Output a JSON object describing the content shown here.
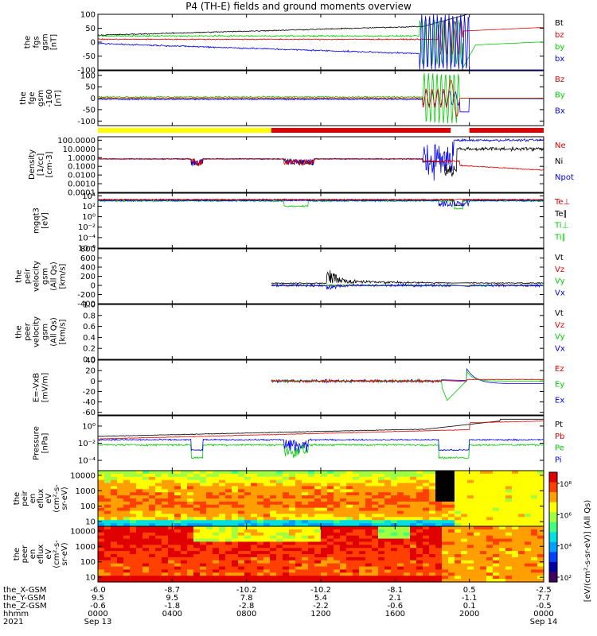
{
  "title": "P4 (TH-E) fields and ground moments overview",
  "colors": {
    "black": "#000000",
    "red": "#e00000",
    "green": "#00cc00",
    "blue": "#0000ee",
    "yellow": "#ffff00"
  },
  "panels": [
    {
      "id": "fgs",
      "ylabel": [
        "the",
        "fgs",
        "gsm",
        "[nT]"
      ],
      "ticks": [
        "100",
        "50",
        "0",
        "-50",
        "-100"
      ],
      "tickvals": [
        100,
        50,
        0,
        -50,
        -100
      ],
      "ylim": [
        -100,
        100
      ],
      "legend": [
        {
          "text": "Bt",
          "color": "#000000"
        },
        {
          "text": "bz",
          "color": "#e00000"
        },
        {
          "text": "by",
          "color": "#00cc00"
        },
        {
          "text": "bx",
          "color": "#0000ee"
        }
      ]
    },
    {
      "id": "fge",
      "ylabel": [
        "the",
        "fge",
        "gsm",
        "-160",
        "[nT]"
      ],
      "ticks": [
        "100",
        "50",
        "0",
        "-50",
        "-100"
      ],
      "tickvals": [
        100,
        50,
        0,
        -50,
        -100
      ],
      "ylim": [
        -120,
        120
      ],
      "legend": [
        {
          "text": "Bz",
          "color": "#e00000"
        },
        {
          "text": "By",
          "color": "#00cc00"
        },
        {
          "text": "Bx",
          "color": "#0000ee"
        }
      ]
    },
    {
      "id": "density",
      "ylabel": [
        "Density",
        "[1/cc]",
        "[cm-3]"
      ],
      "ticks": [
        "100.0000",
        "10.0000",
        "1.0000",
        "0.1000",
        "0.0100",
        "0.0010",
        "0.0001"
      ],
      "tickvals": [
        2,
        1,
        0,
        -1,
        -2,
        -3,
        -4
      ],
      "ylim": [
        -4,
        2.4
      ],
      "legend": [
        {
          "text": "Ne",
          "color": "#e00000"
        },
        {
          "text": "Ni",
          "color": "#000000"
        },
        {
          "text": "Npot",
          "color": "#0000ee"
        }
      ]
    },
    {
      "id": "temp",
      "ylabel": [
        "mgqt3",
        "[eV]"
      ],
      "ticks": [
        "10⁴",
        "10²",
        "10⁰",
        "10⁻²",
        "10⁻⁴",
        "10⁻⁶"
      ],
      "tickvals": [
        4,
        2,
        0,
        -2,
        -4,
        -6
      ],
      "ylim": [
        -6,
        4.5
      ],
      "legend": [
        {
          "text": "Te⊥",
          "color": "#e00000"
        },
        {
          "text": "Te∥",
          "color": "#000000"
        },
        {
          "text": "Ti⊥",
          "color": "#00cc00"
        },
        {
          "text": "Ti∥",
          "color": "#00cc00"
        }
      ]
    },
    {
      "id": "peir_vel",
      "ylabel": [
        "the",
        "peir",
        "velocity",
        "gsm",
        "(All Qs)",
        "[km/s]"
      ],
      "ticks": [
        "800",
        "600",
        "400",
        "200",
        "0",
        "-200",
        "-400"
      ],
      "tickvals": [
        800,
        600,
        400,
        200,
        0,
        -200,
        -400
      ],
      "ylim": [
        -400,
        800
      ],
      "legend": [
        {
          "text": "Vt",
          "color": "#000000"
        },
        {
          "text": "Vz",
          "color": "#e00000"
        },
        {
          "text": "Vy",
          "color": "#00cc00"
        },
        {
          "text": "Vx",
          "color": "#0000ee"
        }
      ]
    },
    {
      "id": "peer_vel",
      "ylabel": [
        "the",
        "peer",
        "velocity",
        "gsm",
        "(All Qs)",
        "[km/s]"
      ],
      "ticks": [
        "1.0",
        "0.8",
        "0.6",
        "0.4",
        "0.2",
        "0.0"
      ],
      "tickvals": [
        1,
        0.8,
        0.6,
        0.4,
        0.2,
        0
      ],
      "ylim": [
        0,
        1
      ],
      "legend": [
        {
          "text": "Vt",
          "color": "#000000"
        },
        {
          "text": "Vz",
          "color": "#e00000"
        },
        {
          "text": "Vy",
          "color": "#00cc00"
        },
        {
          "text": "Vx",
          "color": "#0000ee"
        }
      ]
    },
    {
      "id": "efield",
      "ylabel": [
        "E=-VxB",
        "[mV/m]"
      ],
      "ticks": [
        "40",
        "20",
        "0",
        "-20",
        "-40",
        "-60"
      ],
      "tickvals": [
        40,
        20,
        0,
        -20,
        -40,
        -60
      ],
      "ylim": [
        -65,
        40
      ],
      "legend": [
        {
          "text": "Ez",
          "color": "#e00000"
        },
        {
          "text": "Ey",
          "color": "#00cc00"
        },
        {
          "text": "Ex",
          "color": "#0000ee"
        }
      ]
    },
    {
      "id": "pressure",
      "ylabel": [
        "Pressure",
        "[nPa]"
      ],
      "ticks": [
        "10⁰",
        "10⁻²",
        "10⁻⁴"
      ],
      "tickvals": [
        0,
        -2,
        -4
      ],
      "ylim": [
        -5.2,
        1.2
      ],
      "legend": [
        {
          "text": "Pt",
          "color": "#000000"
        },
        {
          "text": "Pb",
          "color": "#e00000"
        },
        {
          "text": "Pe",
          "color": "#00cc00"
        },
        {
          "text": "Pi",
          "color": "#0000ee"
        }
      ]
    },
    {
      "id": "peir_eflux",
      "ylabel": [
        "the",
        "peir",
        "en",
        "eflux",
        "eV",
        "(cm²-s-",
        "sr-eV)"
      ],
      "ticks": [
        "10000",
        "1000",
        "100",
        "10"
      ],
      "tickvals": [
        4,
        3,
        2,
        1
      ],
      "ylim": [
        0.7,
        4.3
      ],
      "legend": []
    },
    {
      "id": "peer_eflux",
      "ylabel": [
        "the",
        "peer",
        "en",
        "eflux",
        "eV",
        "(cm²-s-",
        "sr-eV)"
      ],
      "ticks": [
        "10000",
        "1000",
        "100",
        "10"
      ],
      "tickvals": [
        4,
        3,
        2,
        1
      ],
      "ylim": [
        0.7,
        4.3
      ],
      "legend": []
    }
  ],
  "colorbar": {
    "ticks": [
      "10⁸",
      "10⁶",
      "10⁴",
      "10²"
    ],
    "label": "[eV/(cm²-s-sr-eV)] (All Qs)"
  },
  "xaxis": {
    "rows": [
      {
        "label": "the_X-GSM",
        "values": [
          "-6.0",
          "-8.7",
          "-10.2",
          "-10.2",
          "-8.1",
          "0.5",
          "-2.5"
        ]
      },
      {
        "label": "the_Y-GSM",
        "values": [
          "9.5",
          "9.5",
          "7.8",
          "5.4",
          "2.1",
          "-1.1",
          "7.7"
        ]
      },
      {
        "label": "the_Z-GSM",
        "values": [
          "-0.6",
          "-1.8",
          "-2.8",
          "-2.2",
          "-0.6",
          "0.1",
          "-0.5"
        ]
      },
      {
        "label": "hhmm",
        "values": [
          "0000",
          "0400",
          "0800",
          "1200",
          "1600",
          "2000",
          "0000"
        ]
      },
      {
        "label": "2021",
        "values": [
          "Sep 13",
          "",
          "",
          "",
          "",
          "",
          "Sep 14"
        ]
      }
    ]
  },
  "chart_data": {
    "type": "line",
    "title": "P4 (TH-E) fields and ground moments overview",
    "xlabel": "hhmm",
    "x": [
      "0000",
      "0400",
      "0800",
      "1200",
      "1600",
      "2000",
      "0000"
    ],
    "series": [
      {
        "name": "Bt",
        "panel": "fgs",
        "values": [
          28,
          35,
          40,
          45,
          60,
          100,
          100
        ]
      },
      {
        "name": "bz",
        "panel": "fgs",
        "values": [
          15,
          10,
          12,
          10,
          12,
          45,
          60
        ]
      },
      {
        "name": "by",
        "panel": "fgs",
        "values": [
          22,
          18,
          20,
          22,
          25,
          60,
          -10
        ]
      },
      {
        "name": "bx",
        "panel": "fgs",
        "values": [
          -5,
          -15,
          -25,
          -40,
          -55,
          -80,
          -100
        ]
      },
      {
        "name": "Ne",
        "panel": "density",
        "values": [
          0.7,
          0.6,
          0.3,
          0.5,
          0.2,
          0.1,
          0.06
        ]
      },
      {
        "name": "Ni",
        "panel": "density",
        "values": [
          0.7,
          0.6,
          0.35,
          0.5,
          0.3,
          10,
          8
        ]
      },
      {
        "name": "Npot",
        "panel": "density",
        "values": [
          0.7,
          0.6,
          0.3,
          0.5,
          0.3,
          1,
          40
        ]
      },
      {
        "name": "Pt",
        "panel": "pressure",
        "values": [
          0.05,
          0.06,
          0.07,
          0.1,
          0.2,
          1.5,
          2
        ]
      },
      {
        "name": "Pb",
        "panel": "pressure",
        "values": [
          0.03,
          0.04,
          0.05,
          0.08,
          0.15,
          0.8,
          1
        ]
      },
      {
        "name": "Pe",
        "panel": "pressure",
        "values": [
          0.005,
          0.004,
          0.001,
          0.003,
          0.004,
          0.0005,
          0.0003
        ]
      },
      {
        "name": "Pi",
        "panel": "pressure",
        "values": [
          0.02,
          0.02,
          0.01,
          0.02,
          0.02,
          0.001,
          0.002
        ]
      }
    ]
  }
}
